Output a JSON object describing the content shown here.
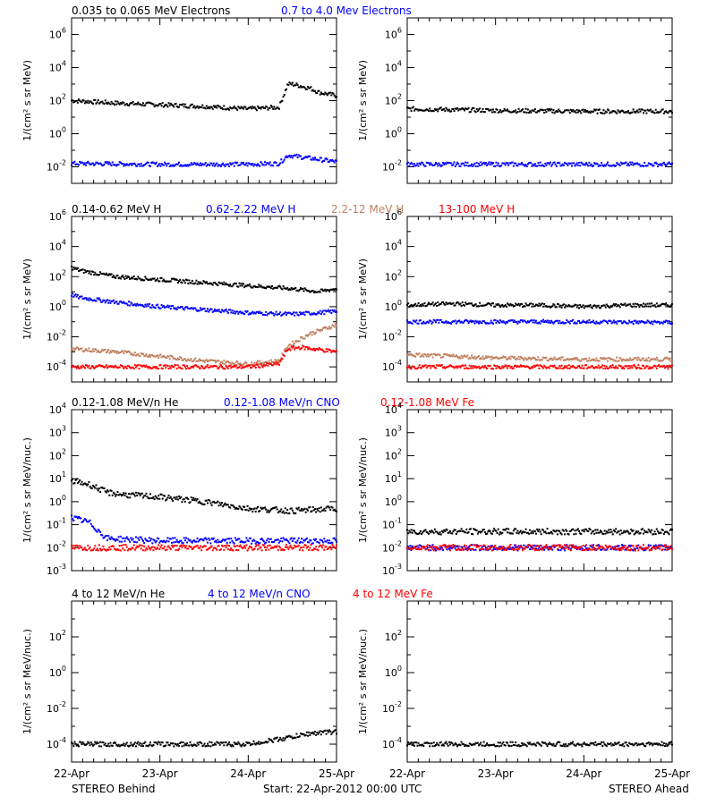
{
  "footer": {
    "left": "STEREO Behind",
    "center": "Start: 22-Apr-2012 00:00 UTC",
    "right": "STEREO Ahead"
  },
  "colors": {
    "black": "#000000",
    "blue": "#0000ff",
    "tan": "#c08060",
    "red": "#ff0000"
  },
  "chart_data": [
    {
      "type": "scatter",
      "row": 0,
      "side": "behind",
      "log_y": true,
      "ylim_exp": [
        -3,
        7
      ],
      "y_ticks_exp": [
        -2,
        0,
        2,
        4,
        6
      ],
      "ylabel": "1/(cm² s sr MeV)",
      "legend": [
        {
          "label": "0.035 to 0.065 MeV Electrons",
          "color": "#000000"
        },
        {
          "label": "0.7 to 4.0 Mev Electrons",
          "color": "#0000ff"
        }
      ],
      "series": [
        {
          "color": "#000000",
          "x": [
            0,
            0.5,
            1.0,
            1.5,
            2.0,
            2.35,
            2.45,
            2.5,
            2.7,
            2.8,
            3.0
          ],
          "log_y": [
            2.0,
            1.85,
            1.75,
            1.65,
            1.5,
            1.6,
            3.0,
            3.0,
            2.75,
            2.5,
            2.3
          ]
        },
        {
          "color": "#0000ff",
          "x": [
            0,
            1.0,
            2.0,
            2.35,
            2.45,
            3.0
          ],
          "log_y": [
            -1.8,
            -1.85,
            -1.85,
            -1.8,
            -1.3,
            -1.7
          ]
        }
      ]
    },
    {
      "type": "scatter",
      "row": 0,
      "side": "ahead",
      "log_y": true,
      "ylim_exp": [
        -3,
        7
      ],
      "y_ticks_exp": [
        -2,
        0,
        2,
        4,
        6
      ],
      "ylabel": "1/(cm² s sr MeV)",
      "series": [
        {
          "color": "#000000",
          "x": [
            0,
            1.0,
            2.0,
            3.0
          ],
          "log_y": [
            1.5,
            1.4,
            1.35,
            1.35
          ]
        },
        {
          "color": "#0000ff",
          "x": [
            0,
            1.0,
            2.0,
            3.0
          ],
          "log_y": [
            -1.85,
            -1.85,
            -1.85,
            -1.85
          ]
        }
      ]
    },
    {
      "type": "scatter",
      "row": 1,
      "side": "behind",
      "log_y": true,
      "ylim_exp": [
        -5,
        6
      ],
      "y_ticks_exp": [
        -4,
        -2,
        0,
        2,
        4,
        6
      ],
      "ylabel": "1/(cm² s sr MeV)",
      "legend": [
        {
          "label": "0.14-0.62 MeV H",
          "color": "#000000"
        },
        {
          "label": "0.62-2.22 MeV H",
          "color": "#0000ff"
        },
        {
          "label": "2.2-12 MeV H",
          "color": "#c08060"
        },
        {
          "label": "13-100 MeV H",
          "color": "#ff0000"
        }
      ],
      "series": [
        {
          "color": "#000000",
          "x": [
            0,
            0.1,
            0.5,
            1.0,
            1.5,
            2.0,
            2.5,
            2.8,
            3.0
          ],
          "log_y": [
            2.6,
            2.4,
            2.0,
            1.8,
            1.6,
            1.4,
            1.2,
            1.0,
            1.2
          ]
        },
        {
          "color": "#0000ff",
          "x": [
            0,
            0.1,
            0.5,
            1.0,
            1.5,
            2.0,
            2.5,
            2.8,
            3.0
          ],
          "log_y": [
            0.8,
            0.6,
            0.3,
            0.0,
            -0.2,
            -0.4,
            -0.5,
            -0.4,
            -0.3
          ]
        },
        {
          "color": "#c08060",
          "x": [
            0,
            0.5,
            1.0,
            1.5,
            2.0,
            2.35,
            2.45,
            2.7,
            3.0
          ],
          "log_y": [
            -2.8,
            -3.0,
            -3.3,
            -3.6,
            -3.8,
            -3.6,
            -2.6,
            -1.8,
            -1.2
          ]
        },
        {
          "color": "#ff0000",
          "x": [
            0,
            1.0,
            2.0,
            2.35,
            2.45,
            2.6,
            3.0
          ],
          "log_y": [
            -4.0,
            -4.0,
            -4.0,
            -3.8,
            -2.8,
            -2.7,
            -3.0
          ]
        }
      ]
    },
    {
      "type": "scatter",
      "row": 1,
      "side": "ahead",
      "log_y": true,
      "ylim_exp": [
        -5,
        6
      ],
      "y_ticks_exp": [
        -4,
        -2,
        0,
        2,
        4,
        6
      ],
      "ylabel": "1/(cm² s sr MeV)",
      "series": [
        {
          "color": "#000000",
          "x": [
            0,
            0.5,
            1.0,
            1.5,
            2.0,
            2.5,
            3.0
          ],
          "log_y": [
            0.1,
            0.2,
            0.1,
            0.1,
            0.0,
            0.1,
            0.1
          ]
        },
        {
          "color": "#0000ff",
          "x": [
            0,
            1.0,
            2.0,
            3.0
          ],
          "log_y": [
            -1.0,
            -1.0,
            -1.0,
            -1.05
          ]
        },
        {
          "color": "#c08060",
          "x": [
            0,
            1.0,
            2.0,
            3.0
          ],
          "log_y": [
            -3.2,
            -3.4,
            -3.5,
            -3.5
          ]
        },
        {
          "color": "#ff0000",
          "x": [
            0,
            1.0,
            2.0,
            3.0
          ],
          "log_y": [
            -4.0,
            -4.0,
            -4.0,
            -4.0
          ]
        }
      ]
    },
    {
      "type": "scatter",
      "row": 2,
      "side": "behind",
      "log_y": true,
      "ylim_exp": [
        -3,
        4
      ],
      "y_ticks_exp": [
        -3,
        -2,
        -1,
        0,
        1,
        2,
        3,
        4
      ],
      "ylabel": "1/(cm² s sr MeV/nuc.)",
      "legend": [
        {
          "label": "0.12-1.08 MeV/n He",
          "color": "#000000"
        },
        {
          "label": "0.12-1.08 MeV/n CNO",
          "color": "#0000ff"
        },
        {
          "label": "0.12-1.08 MeV Fe",
          "color": "#ff0000"
        }
      ],
      "series": [
        {
          "color": "#000000",
          "x": [
            0,
            0.2,
            0.4,
            0.6,
            1.0,
            1.5,
            2.0,
            2.5,
            3.0
          ],
          "log_y": [
            0.9,
            0.75,
            0.4,
            0.3,
            0.2,
            0.0,
            -0.3,
            -0.4,
            -0.3
          ]
        },
        {
          "color": "#0000ff",
          "x": [
            0,
            0.2,
            0.4,
            1.0,
            2.0,
            3.0
          ],
          "log_y": [
            -0.7,
            -0.9,
            -1.6,
            -1.7,
            -1.7,
            -1.7
          ]
        },
        {
          "color": "#ff0000",
          "x": [
            0,
            1.0,
            2.0,
            3.0
          ],
          "log_y": [
            -2.0,
            -2.0,
            -2.0,
            -2.0
          ]
        }
      ]
    },
    {
      "type": "scatter",
      "row": 2,
      "side": "ahead",
      "log_y": true,
      "ylim_exp": [
        -3,
        4
      ],
      "y_ticks_exp": [
        -3,
        -2,
        -1,
        0,
        1,
        2,
        3,
        4
      ],
      "ylabel": "1/(cm² s sr MeV/nuc.)",
      "series": [
        {
          "color": "#000000",
          "x": [
            0,
            1.0,
            2.0,
            3.0
          ],
          "log_y": [
            -1.3,
            -1.3,
            -1.3,
            -1.3
          ]
        },
        {
          "color": "#0000ff",
          "x": [
            0,
            1.0,
            2.0,
            3.0
          ],
          "log_y": [
            -2.0,
            -2.0,
            -2.0,
            -2.0
          ]
        },
        {
          "color": "#ff0000",
          "x": [
            0,
            1.0,
            2.0,
            3.0
          ],
          "log_y": [
            -2.0,
            -2.0,
            -2.0,
            -2.0
          ]
        }
      ]
    },
    {
      "type": "scatter",
      "row": 3,
      "side": "behind",
      "log_y": true,
      "ylim_exp": [
        -5,
        4
      ],
      "y_ticks_exp": [
        -4,
        -2,
        0,
        2
      ],
      "ylabel": "1/(cm² s sr MeV/nuc.)",
      "legend": [
        {
          "label": "4 to 12 MeV/n He",
          "color": "#000000"
        },
        {
          "label": "4 to 12 MeV/n CNO",
          "color": "#0000ff"
        },
        {
          "label": "4 to 12 MeV Fe",
          "color": "#ff0000"
        }
      ],
      "series": [
        {
          "color": "#000000",
          "x": [
            0,
            1.0,
            2.0,
            2.5,
            2.7,
            3.0
          ],
          "log_y": [
            -4.0,
            -4.0,
            -4.0,
            -3.6,
            -3.4,
            -3.3
          ]
        }
      ]
    },
    {
      "type": "scatter",
      "row": 3,
      "side": "ahead",
      "log_y": true,
      "ylim_exp": [
        -5,
        4
      ],
      "y_ticks_exp": [
        -4,
        -2,
        0,
        2
      ],
      "ylabel": "1/(cm² s sr MeV/nuc.)",
      "series": [
        {
          "color": "#000000",
          "x": [
            0,
            1.0,
            2.0,
            3.0
          ],
          "log_y": [
            -4.0,
            -4.0,
            -4.0,
            -4.0
          ]
        }
      ]
    }
  ],
  "x_axis": {
    "range_days": [
      0,
      3
    ],
    "tick_labels": [
      "22-Apr",
      "23-Apr",
      "24-Apr",
      "25-Apr"
    ]
  }
}
